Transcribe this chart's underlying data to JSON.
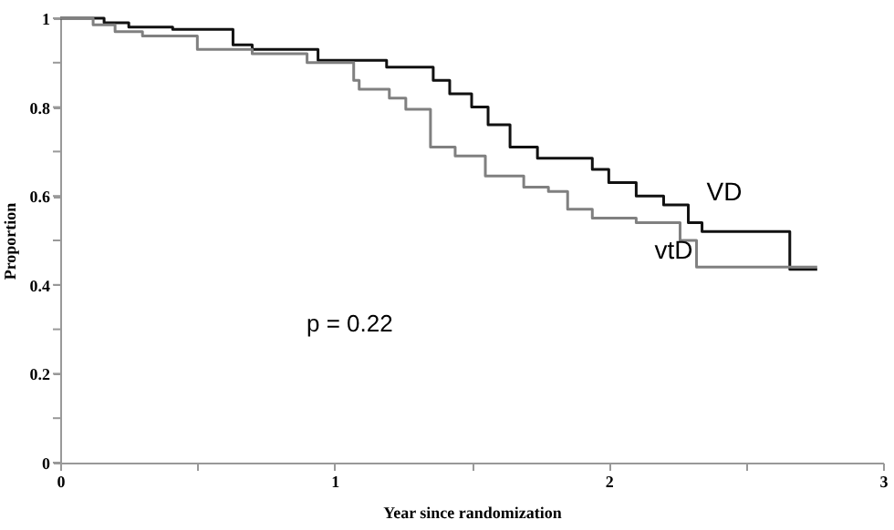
{
  "chart_data": {
    "type": "step",
    "xlabel": "Year since randomization",
    "ylabel": "Proportion",
    "xlim": [
      0,
      3
    ],
    "ylim": [
      0,
      1
    ],
    "xticks": [
      0,
      {
        "value": 0.5,
        "label": null
      },
      1,
      {
        "value": 1.5,
        "label": null
      },
      2,
      {
        "value": 2.5,
        "label": null
      },
      3
    ],
    "yticks": [
      0,
      {
        "value": 0.1,
        "label": null
      },
      0.2,
      {
        "value": 0.3,
        "label": null
      },
      0.4,
      {
        "value": 0.5,
        "label": null
      },
      0.6,
      {
        "value": 0.7,
        "label": null
      },
      0.8,
      {
        "value": 0.9,
        "label": null
      },
      1
    ],
    "grid": false,
    "marker": "none",
    "line_style": "solid",
    "annotations": [
      "p = 0.22"
    ],
    "series": [
      {
        "name": "VD",
        "color": "#111111",
        "x": [
          0,
          0.16,
          0.25,
          0.41,
          0.63,
          0.7,
          0.94,
          1.19,
          1.36,
          1.42,
          1.5,
          1.56,
          1.64,
          1.74,
          1.94,
          2.0,
          2.1,
          2.2,
          2.29,
          2.34,
          2.66,
          2.76
        ],
        "values": [
          1,
          0.99,
          0.98,
          0.975,
          0.94,
          0.93,
          0.905,
          0.89,
          0.86,
          0.83,
          0.8,
          0.76,
          0.71,
          0.685,
          0.66,
          0.63,
          0.6,
          0.58,
          0.54,
          0.52,
          0.435,
          0.435
        ]
      },
      {
        "name": "vtD",
        "color": "#808080",
        "x": [
          0,
          0.12,
          0.2,
          0.3,
          0.5,
          0.7,
          0.9,
          1.07,
          1.09,
          1.2,
          1.26,
          1.35,
          1.44,
          1.55,
          1.69,
          1.78,
          1.85,
          1.94,
          2.1,
          2.26,
          2.32,
          2.76
        ],
        "values": [
          1,
          0.985,
          0.97,
          0.96,
          0.93,
          0.92,
          0.9,
          0.86,
          0.84,
          0.82,
          0.795,
          0.71,
          0.69,
          0.645,
          0.62,
          0.61,
          0.57,
          0.55,
          0.54,
          0.5,
          0.44,
          0.44
        ]
      }
    ]
  }
}
